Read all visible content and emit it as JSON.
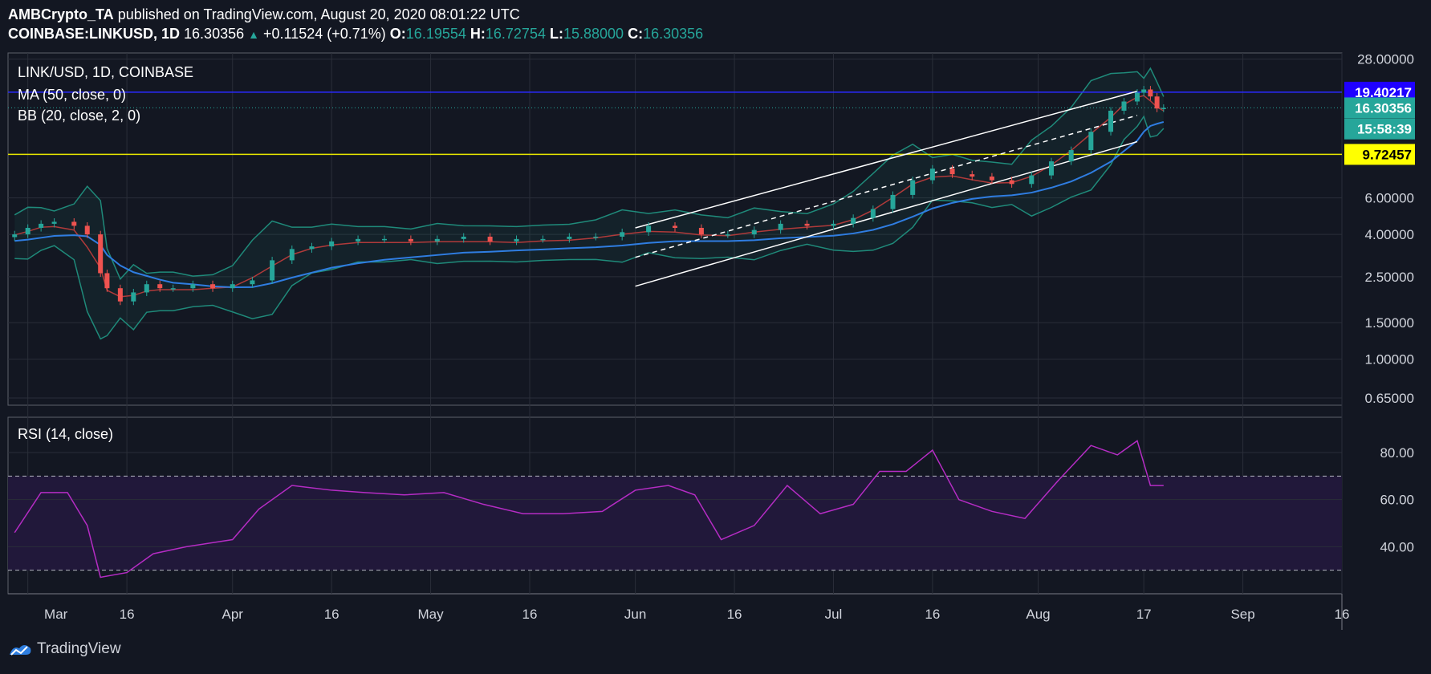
{
  "header": {
    "publisher": "AMBCrypto_TA",
    "published_text": "published on TradingView.com, August 20, 2020 08:01:22 UTC",
    "symbol": "COINBASE:LINKUSD, 1D",
    "last": "16.30356",
    "change": "+0.11524 (+0.71%)",
    "o_label": "O:",
    "o": "16.19554",
    "h_label": "H:",
    "h": "16.72754",
    "l_label": "L:",
    "l": "15.88000",
    "c_label": "C:",
    "c": "16.30356"
  },
  "legend": {
    "pair": "LINK/USD, 1D, COINBASE",
    "ma": "MA (50, close, 0)",
    "bb": "BB (20, close, 2, 0)",
    "rsi": "RSI (14, close)"
  },
  "price_axis": {
    "ticks": [
      28.0,
      6.0,
      4.0,
      2.5,
      1.5,
      1.0,
      0.65
    ],
    "tick_labels": [
      "28.00000",
      "6.00000",
      "4.00000",
      "2.50000",
      "1.50000",
      "1.00000",
      "0.65000"
    ],
    "scale": "log",
    "ylim": [
      0.6,
      30
    ]
  },
  "price_labels": [
    {
      "value": 19.40217,
      "text": "19.40217",
      "bg": "#1f00ff",
      "fg": "#ffffff"
    },
    {
      "value": 16.30356,
      "text": "16.30356",
      "bg": "#26a69a",
      "fg": "#ffffff"
    },
    {
      "value": 12.9,
      "text": "15:58:39",
      "bg": "#26a69a",
      "fg": "#ffffff"
    },
    {
      "value": 9.72457,
      "text": "9.72457",
      "bg": "#ffff00",
      "fg": "#000000"
    }
  ],
  "rsi_axis": {
    "ticks": [
      80,
      60,
      40
    ],
    "tick_labels": [
      "80.00",
      "60.00",
      "40.00"
    ],
    "ylim": [
      20,
      95
    ],
    "band": [
      30,
      70
    ]
  },
  "time_axis": {
    "labels": [
      "Mar",
      "16",
      "Apr",
      "16",
      "May",
      "16",
      "Jun",
      "16",
      "Jul",
      "16",
      "Aug",
      "17",
      "Sep",
      "16"
    ],
    "dates": [
      "2020-03-01",
      "2020-03-16",
      "2020-04-01",
      "2020-04-16",
      "2020-05-01",
      "2020-05-16",
      "2020-06-01",
      "2020-06-16",
      "2020-07-01",
      "2020-07-16",
      "2020-08-01",
      "2020-08-17",
      "2020-09-01",
      "2020-09-16"
    ],
    "start": "2020-02-27",
    "end": "2020-09-16"
  },
  "horizontal_lines": [
    {
      "value": 19.40217,
      "color": "#2a2aff"
    },
    {
      "value": 9.72457,
      "color": "#e6e600"
    }
  ],
  "colors": {
    "up": "#26a69a",
    "down": "#ef5350",
    "ma": "#2f7de1",
    "bb_basis": "#b03a3a",
    "bb_band": "#1f8a7a",
    "rsi": "#b52cc4",
    "rsi_band_fill": "#21183a"
  },
  "chart_data": [
    {
      "type": "candlestick",
      "title": "LINK/USD, 1D, COINBASE",
      "x": [
        "2020-02-28",
        "2020-03-01",
        "2020-03-03",
        "2020-03-05",
        "2020-03-08",
        "2020-03-10",
        "2020-03-12",
        "2020-03-13",
        "2020-03-15",
        "2020-03-17",
        "2020-03-19",
        "2020-03-21",
        "2020-03-23",
        "2020-03-26",
        "2020-03-29",
        "2020-04-01",
        "2020-04-04",
        "2020-04-07",
        "2020-04-10",
        "2020-04-13",
        "2020-04-16",
        "2020-04-20",
        "2020-04-24",
        "2020-04-28",
        "2020-05-02",
        "2020-05-06",
        "2020-05-10",
        "2020-05-14",
        "2020-05-18",
        "2020-05-22",
        "2020-05-26",
        "2020-05-30",
        "2020-06-03",
        "2020-06-07",
        "2020-06-11",
        "2020-06-15",
        "2020-06-19",
        "2020-06-23",
        "2020-06-27",
        "2020-07-01",
        "2020-07-04",
        "2020-07-07",
        "2020-07-10",
        "2020-07-13",
        "2020-07-16",
        "2020-07-19",
        "2020-07-22",
        "2020-07-25",
        "2020-07-28",
        "2020-07-31",
        "2020-08-03",
        "2020-08-06",
        "2020-08-09",
        "2020-08-12",
        "2020-08-14",
        "2020-08-16",
        "2020-08-17",
        "2020-08-18",
        "2020-08-19",
        "2020-08-20"
      ],
      "close": [
        4.0,
        4.3,
        4.5,
        4.6,
        4.4,
        4.0,
        2.6,
        2.2,
        1.9,
        2.1,
        2.3,
        2.2,
        2.2,
        2.3,
        2.2,
        2.3,
        2.4,
        3.0,
        3.4,
        3.5,
        3.7,
        3.8,
        3.8,
        3.7,
        3.8,
        3.9,
        3.7,
        3.8,
        3.8,
        3.9,
        3.9,
        4.1,
        4.4,
        4.3,
        4.0,
        4.0,
        4.2,
        4.5,
        4.4,
        4.5,
        4.8,
        5.3,
        6.2,
        7.3,
        8.3,
        7.8,
        7.6,
        7.3,
        7.0,
        7.7,
        9.0,
        10.2,
        12.5,
        15.8,
        17.5,
        19.3,
        20.0,
        18.5,
        16.19,
        16.3
      ],
      "rsi_x": [
        "2020-02-28",
        "2020-03-03",
        "2020-03-07",
        "2020-03-10",
        "2020-03-12",
        "2020-03-16",
        "2020-03-20",
        "2020-03-25",
        "2020-04-01",
        "2020-04-05",
        "2020-04-10",
        "2020-04-16",
        "2020-04-21",
        "2020-04-27",
        "2020-05-03",
        "2020-05-09",
        "2020-05-15",
        "2020-05-21",
        "2020-05-27",
        "2020-06-01",
        "2020-06-06",
        "2020-06-10",
        "2020-06-14",
        "2020-06-19",
        "2020-06-24",
        "2020-06-29",
        "2020-07-04",
        "2020-07-08",
        "2020-07-12",
        "2020-07-16",
        "2020-07-20",
        "2020-07-25",
        "2020-07-30",
        "2020-08-04",
        "2020-08-09",
        "2020-08-13",
        "2020-08-16",
        "2020-08-18",
        "2020-08-20"
      ],
      "rsi": [
        46,
        63,
        63,
        49,
        27,
        29,
        37,
        40,
        43,
        56,
        66,
        64,
        63,
        62,
        63,
        58,
        54,
        54,
        55,
        64,
        66,
        62,
        43,
        49,
        66,
        54,
        58,
        72,
        72,
        81,
        60,
        55,
        52,
        68,
        83,
        79,
        85,
        66,
        66
      ]
    }
  ]
}
